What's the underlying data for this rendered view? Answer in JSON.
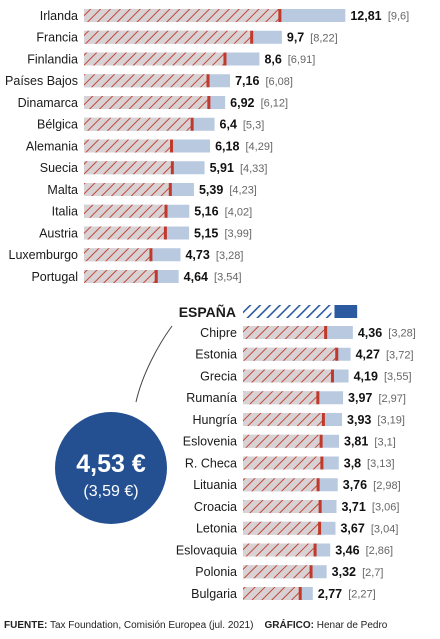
{
  "chart_data": {
    "type": "bar",
    "unit": "€",
    "highlight": {
      "label": "ESPAÑA",
      "value": "4,53 €",
      "sub": "(3,59 €)",
      "num": 4.53,
      "sub_num": 3.59
    },
    "categories": [
      "Irlanda",
      "Francia",
      "Finlandia",
      "Países Bajos",
      "Dinamarca",
      "Bélgica",
      "Alemania",
      "Suecia",
      "Malta",
      "Italia",
      "Austria",
      "Luxemburgo",
      "Portugal",
      "Chipre",
      "Estonia",
      "Grecia",
      "Rumanía",
      "Hungría",
      "Eslovenia",
      "R. Checa",
      "Lituania",
      "Croacia",
      "Letonia",
      "Eslovaquia",
      "Polonia",
      "Bulgaria"
    ],
    "series": [
      {
        "values": [
          12.81,
          9.7,
          8.6,
          7.16,
          6.92,
          6.4,
          6.18,
          5.91,
          5.39,
          5.16,
          5.15,
          4.73,
          4.64,
          4.36,
          4.27,
          4.19,
          3.97,
          3.93,
          3.81,
          3.8,
          3.76,
          3.71,
          3.67,
          3.46,
          3.32,
          2.77
        ]
      },
      {
        "values": [
          9.6,
          8.22,
          6.91,
          6.08,
          6.12,
          5.3,
          4.29,
          4.33,
          4.23,
          4.02,
          3.99,
          3.28,
          3.54,
          3.28,
          3.72,
          3.55,
          2.97,
          3.19,
          3.1,
          3.13,
          2.98,
          3.06,
          3.04,
          2.86,
          2.7,
          2.27
        ]
      }
    ],
    "value_labels": [
      "12,81",
      "9,7",
      "8,6",
      "7,16",
      "6,92",
      "6,4",
      "6,18",
      "5,91",
      "5,39",
      "5,16",
      "5,15",
      "4,73",
      "4,64",
      "4,36",
      "4,27",
      "4,19",
      "3,97",
      "3,93",
      "3,81",
      "3,8",
      "3,76",
      "3,71",
      "3,67",
      "3,46",
      "3,32",
      "2,77"
    ],
    "sub_labels": [
      "[9,6]",
      "[8,22]",
      "[6,91]",
      "[6,08]",
      "[6,12]",
      "[5,3]",
      "[4,29]",
      "[4,33]",
      "[4,23]",
      "[4,02]",
      "[3,99]",
      "[3,28]",
      "[3,54]",
      "[3,28]",
      "[3,72]",
      "[3,55]",
      "[2,97]",
      "[3,19]",
      "[3,1]",
      "[3,13]",
      "[2,98]",
      "[3,06]",
      "[3,04]",
      "[2,86]",
      "[2,7]",
      "[2,27]"
    ],
    "title": "",
    "xlabel": "",
    "ylabel": ""
  },
  "colors": {
    "bar": "#b8c9e0",
    "hatch_line": "#c0473b",
    "marker": "#c0392b",
    "spain": "#2c5aa0",
    "circle": "#245092"
  },
  "footer": {
    "source_label": "FUENTE:",
    "source_text": "Tax Foundation, Comisión Europea (jul. 2021)",
    "graphic_label": "GRÁFICO:",
    "graphic_text": "Henar de Pedro"
  }
}
